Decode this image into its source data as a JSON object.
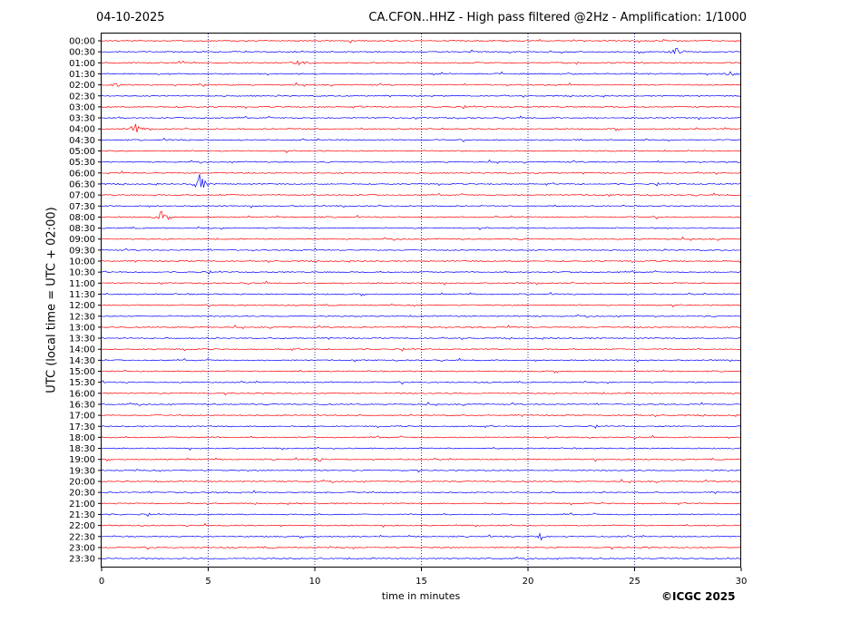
{
  "header": {
    "date": "04-10-2025",
    "title": "CA.CFON..HHZ - High pass filtered @2Hz - Amplification: 1/1000"
  },
  "footer": {
    "copyright": "©ICGC 2025"
  },
  "colors": {
    "trace_a": "#ff0000",
    "trace_b": "#0000ff",
    "grid": "#000080"
  },
  "chart_data": {
    "type": "line",
    "title": "CA.CFON..HHZ - High pass filtered @2Hz - Amplification: 1/1000",
    "xlabel": "time in minutes",
    "ylabel": "UTC (local time = UTC + 02:00)",
    "xlim": [
      0,
      30
    ],
    "x_ticks": [
      0,
      5,
      10,
      15,
      20,
      25,
      30
    ],
    "vertical_gridlines": [
      5,
      10,
      15,
      20,
      25
    ],
    "rows": [
      "00:00",
      "00:30",
      "01:00",
      "01:30",
      "02:00",
      "02:30",
      "03:00",
      "03:30",
      "04:00",
      "04:30",
      "05:00",
      "05:30",
      "06:00",
      "06:30",
      "07:00",
      "07:30",
      "08:00",
      "08:30",
      "09:00",
      "09:30",
      "10:00",
      "10:30",
      "11:00",
      "11:30",
      "12:00",
      "12:30",
      "13:00",
      "13:30",
      "14:00",
      "14:30",
      "15:00",
      "15:30",
      "16:00",
      "16:30",
      "17:00",
      "17:30",
      "18:00",
      "18:30",
      "19:00",
      "19:30",
      "20:00",
      "20:30",
      "21:00",
      "21:30",
      "22:00",
      "22:30",
      "23:00",
      "23:30"
    ],
    "row_colors": "alternating red/blue starting with red at 00:00",
    "events": [
      {
        "row": "00:30",
        "minute": 27.0,
        "amplitude": 0.8
      },
      {
        "row": "01:00",
        "minute": 9.3,
        "amplitude": 0.5
      },
      {
        "row": "01:30",
        "minute": 29.5,
        "amplitude": 0.5
      },
      {
        "row": "02:00",
        "minute": 0.7,
        "amplitude": 0.3
      },
      {
        "row": "04:00",
        "minute": 1.6,
        "amplitude": 1.0
      },
      {
        "row": "06:30",
        "minute": 4.6,
        "amplitude": 2.2
      },
      {
        "row": "08:00",
        "minute": 2.8,
        "amplitude": 1.1
      },
      {
        "row": "19:00",
        "minute": 10.2,
        "amplitude": 0.3
      },
      {
        "row": "22:30",
        "minute": 20.6,
        "amplitude": 0.8
      }
    ]
  }
}
